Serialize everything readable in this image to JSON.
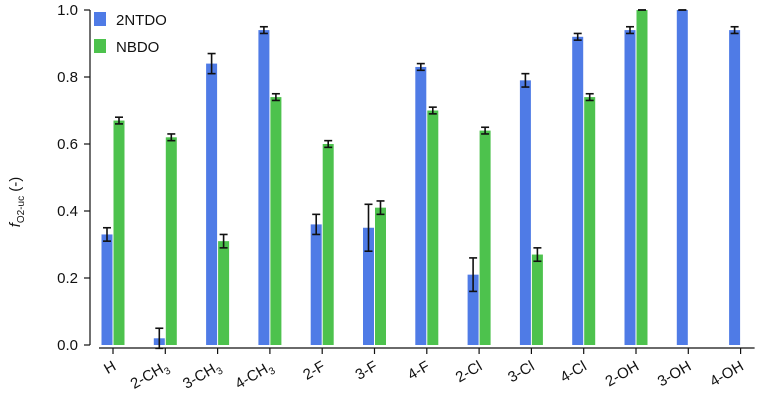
{
  "chart_data": {
    "type": "bar",
    "ylabel": {
      "main": "f",
      "subscript": "O2-uc",
      "rest": " (-)"
    },
    "ylim": [
      0,
      1.0
    ],
    "yticks": [
      "0.0",
      "0.2",
      "0.4",
      "0.6",
      "0.8",
      "1.0"
    ],
    "ytick_values": [
      0.0,
      0.2,
      0.4,
      0.6,
      0.8,
      1.0
    ],
    "grid": false,
    "legend_position": "top-left",
    "categories": [
      {
        "label": "H",
        "sub": ""
      },
      {
        "label": "2-CH",
        "sub": "3"
      },
      {
        "label": "3-CH",
        "sub": "3"
      },
      {
        "label": "4-CH",
        "sub": "3"
      },
      {
        "label": "2-F",
        "sub": ""
      },
      {
        "label": "3-F",
        "sub": ""
      },
      {
        "label": "4-F",
        "sub": ""
      },
      {
        "label": "2-Cl",
        "sub": ""
      },
      {
        "label": "3-Cl",
        "sub": ""
      },
      {
        "label": "4-Cl",
        "sub": ""
      },
      {
        "label": "2-OH",
        "sub": ""
      },
      {
        "label": "3-OH",
        "sub": ""
      },
      {
        "label": "4-OH",
        "sub": ""
      }
    ],
    "series": [
      {
        "name": "2NTDO",
        "color": "#4f7be6",
        "values": [
          0.33,
          0.02,
          0.84,
          0.94,
          0.36,
          0.35,
          0.83,
          0.21,
          0.79,
          0.92,
          0.94,
          1.0,
          0.94
        ],
        "errors": [
          0.02,
          0.03,
          0.03,
          0.01,
          0.03,
          0.07,
          0.01,
          0.05,
          0.02,
          0.01,
          0.01,
          0.0,
          0.01
        ]
      },
      {
        "name": "NBDO",
        "color": "#4dc24d",
        "values": [
          0.67,
          0.62,
          0.31,
          0.74,
          0.6,
          0.41,
          0.7,
          0.64,
          0.27,
          0.74,
          1.0,
          null,
          null
        ],
        "errors": [
          0.01,
          0.01,
          0.02,
          0.01,
          0.01,
          0.02,
          0.01,
          0.01,
          0.02,
          0.01,
          0.0,
          null,
          null
        ]
      }
    ]
  }
}
